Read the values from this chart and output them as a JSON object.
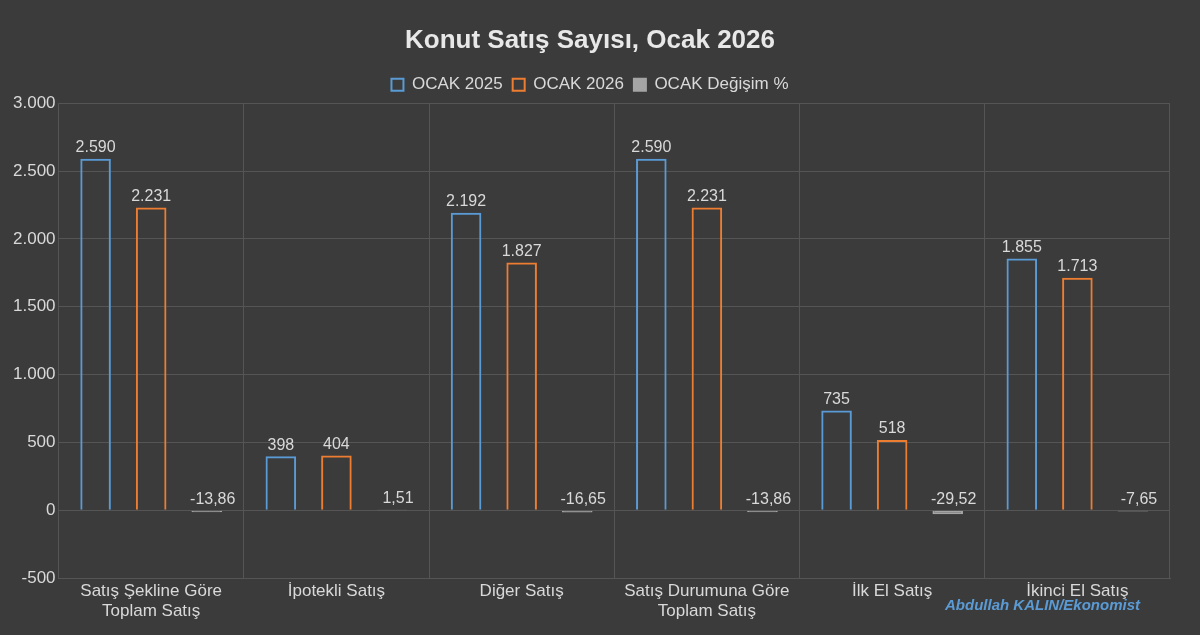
{
  "chart_data": {
    "type": "bar",
    "title": "Konut Satış Sayısı, Ocak 2026",
    "categories": [
      "Satış Şekline Göre Toplam Satış",
      "İpotekli Satış",
      "Diğer Satış",
      "Satış Durumuna Göre Toplam Satış",
      "İlk El Satış",
      "İkinci El Satış"
    ],
    "series": [
      {
        "name": "OCAK 2025",
        "color": "#5b9bd5",
        "values": [
          2590,
          398,
          2192,
          2590,
          735,
          1855
        ],
        "value_labels": [
          "2.590",
          "398",
          "2.192",
          "2.590",
          "735",
          "1.855"
        ]
      },
      {
        "name": "OCAK 2026",
        "color": "#ed7d31",
        "values": [
          2231,
          404,
          1827,
          2231,
          518,
          1713
        ],
        "value_labels": [
          "2.231",
          "404",
          "1.827",
          "2.231",
          "518",
          "1.713"
        ]
      },
      {
        "name": "OCAK Değişim %",
        "color": "#a5a5a5",
        "values": [
          -13.86,
          1.51,
          -16.65,
          -13.86,
          -29.52,
          -7.65
        ],
        "value_labels": [
          "-13,86",
          "1,51",
          "-16,65",
          "-13,86",
          "-29,52",
          "-7,65"
        ]
      }
    ],
    "ylim": [
      -500,
      3000
    ],
    "yticks": [
      {
        "value": -500,
        "label": "-500"
      },
      {
        "value": 0,
        "label": "0"
      },
      {
        "value": 500,
        "label": "500"
      },
      {
        "value": 1000,
        "label": "1.000"
      },
      {
        "value": 1500,
        "label": "1.500"
      },
      {
        "value": 2000,
        "label": "2.000"
      },
      {
        "value": 2500,
        "label": "2.500"
      },
      {
        "value": 3000,
        "label": "3.000"
      }
    ],
    "grid": true,
    "legend": "top",
    "annotations": [
      "Abdullah KALIN/Ekonomist"
    ]
  }
}
